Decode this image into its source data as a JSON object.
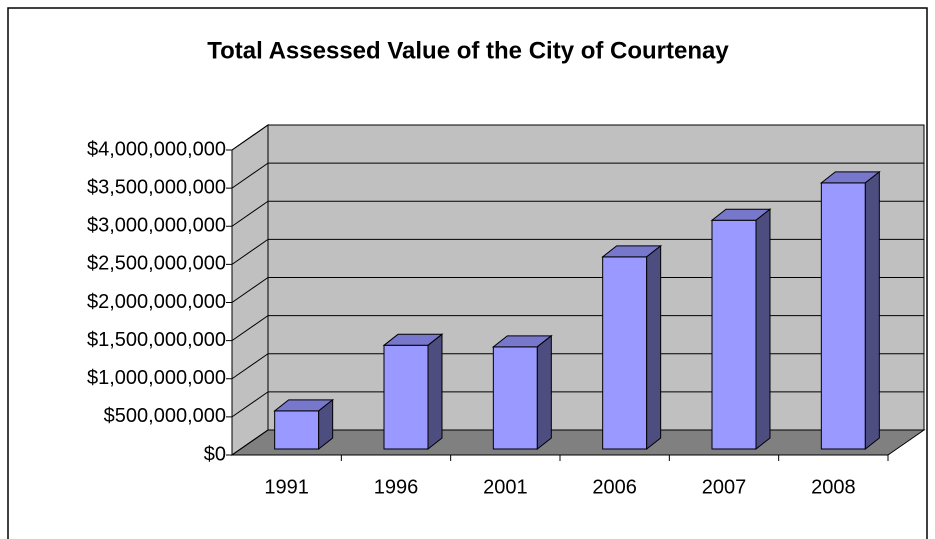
{
  "chart_data": {
    "type": "bar3d",
    "title": "Total Assessed Value of the City of Courtenay",
    "categories": [
      "1991",
      "1996",
      "2001",
      "2006",
      "2007",
      "2008"
    ],
    "values": [
      500000000,
      1360000000,
      1340000000,
      2520000000,
      3000000000,
      3490000000
    ],
    "color": "#9999ff",
    "ylim": [
      0,
      4000000000
    ],
    "yticks": [
      {
        "value": 0,
        "label": "$0"
      },
      {
        "value": 500000000,
        "label": "$500,000,000"
      },
      {
        "value": 1000000000,
        "label": "$1,000,000,000"
      },
      {
        "value": 1500000000,
        "label": "$1,500,000,000"
      },
      {
        "value": 2000000000,
        "label": "$2,000,000,000"
      },
      {
        "value": 2500000000,
        "label": "$2,500,000,000"
      },
      {
        "value": 3000000000,
        "label": "$3,000,000,000"
      },
      {
        "value": 3500000000,
        "label": "$3,500,000,000"
      },
      {
        "value": 4000000000,
        "label": "$4,000,000,000"
      }
    ],
    "grid": true
  }
}
